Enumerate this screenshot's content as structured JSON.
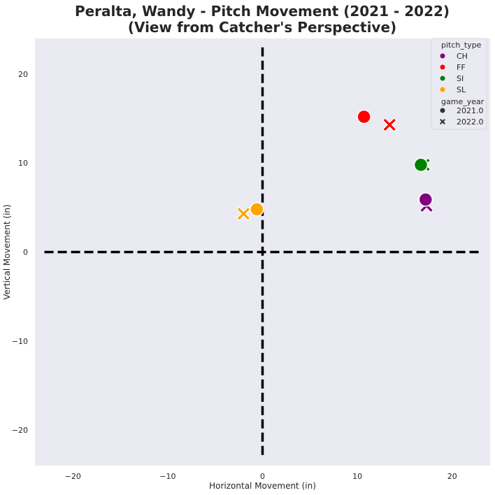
{
  "chart_data": {
    "type": "scatter",
    "title_line1": "Peralta, Wandy - Pitch Movement (2021 - 2022)",
    "title_line2": "(View from Catcher's Perspective)",
    "xlabel": "Horizontal Movement (in)",
    "ylabel": "Vertical Movement (in)",
    "xlim": [
      -24,
      24
    ],
    "ylim": [
      -24,
      24
    ],
    "x_ticks": [
      -20,
      -10,
      0,
      10,
      20
    ],
    "y_ticks": [
      -20,
      -10,
      0,
      10,
      20
    ],
    "grid": false,
    "background_color": "#eaeaf2",
    "reference_lines": [
      {
        "orientation": "vertical",
        "value": 0,
        "from": -23,
        "to": 23,
        "style": "dashed",
        "color": "#000000"
      },
      {
        "orientation": "horizontal",
        "value": 0,
        "from": -23,
        "to": 23,
        "style": "dashed",
        "color": "#000000"
      }
    ],
    "legend": {
      "position": "top-right",
      "hue_title": "pitch_type",
      "style_title": "game_year",
      "hue_entries": [
        {
          "label": "CH",
          "color": "#800080"
        },
        {
          "label": "FF",
          "color": "#ff0000"
        },
        {
          "label": "SI",
          "color": "#008000"
        },
        {
          "label": "SL",
          "color": "#ffa500"
        }
      ],
      "style_entries": [
        {
          "label": "2021.0",
          "marker": "circle"
        },
        {
          "label": "2022.0",
          "marker": "x"
        }
      ]
    },
    "points": [
      {
        "pitch_type": "CH",
        "game_year": "2022.0",
        "x": 17.3,
        "y": 5.2
      },
      {
        "pitch_type": "CH",
        "game_year": "2021.0",
        "x": 17.2,
        "y": 5.9
      },
      {
        "pitch_type": "FF",
        "game_year": "2021.0",
        "x": 10.7,
        "y": 15.2
      },
      {
        "pitch_type": "FF",
        "game_year": "2022.0",
        "x": 13.4,
        "y": 14.3
      },
      {
        "pitch_type": "SI",
        "game_year": "2022.0",
        "x": 17.0,
        "y": 9.8
      },
      {
        "pitch_type": "SI",
        "game_year": "2021.0",
        "x": 16.7,
        "y": 9.8
      },
      {
        "pitch_type": "SL",
        "game_year": "2022.0",
        "x": -2.0,
        "y": 4.3
      },
      {
        "pitch_type": "SL",
        "game_year": "2021.0",
        "x": -0.6,
        "y": 4.8
      }
    ]
  }
}
